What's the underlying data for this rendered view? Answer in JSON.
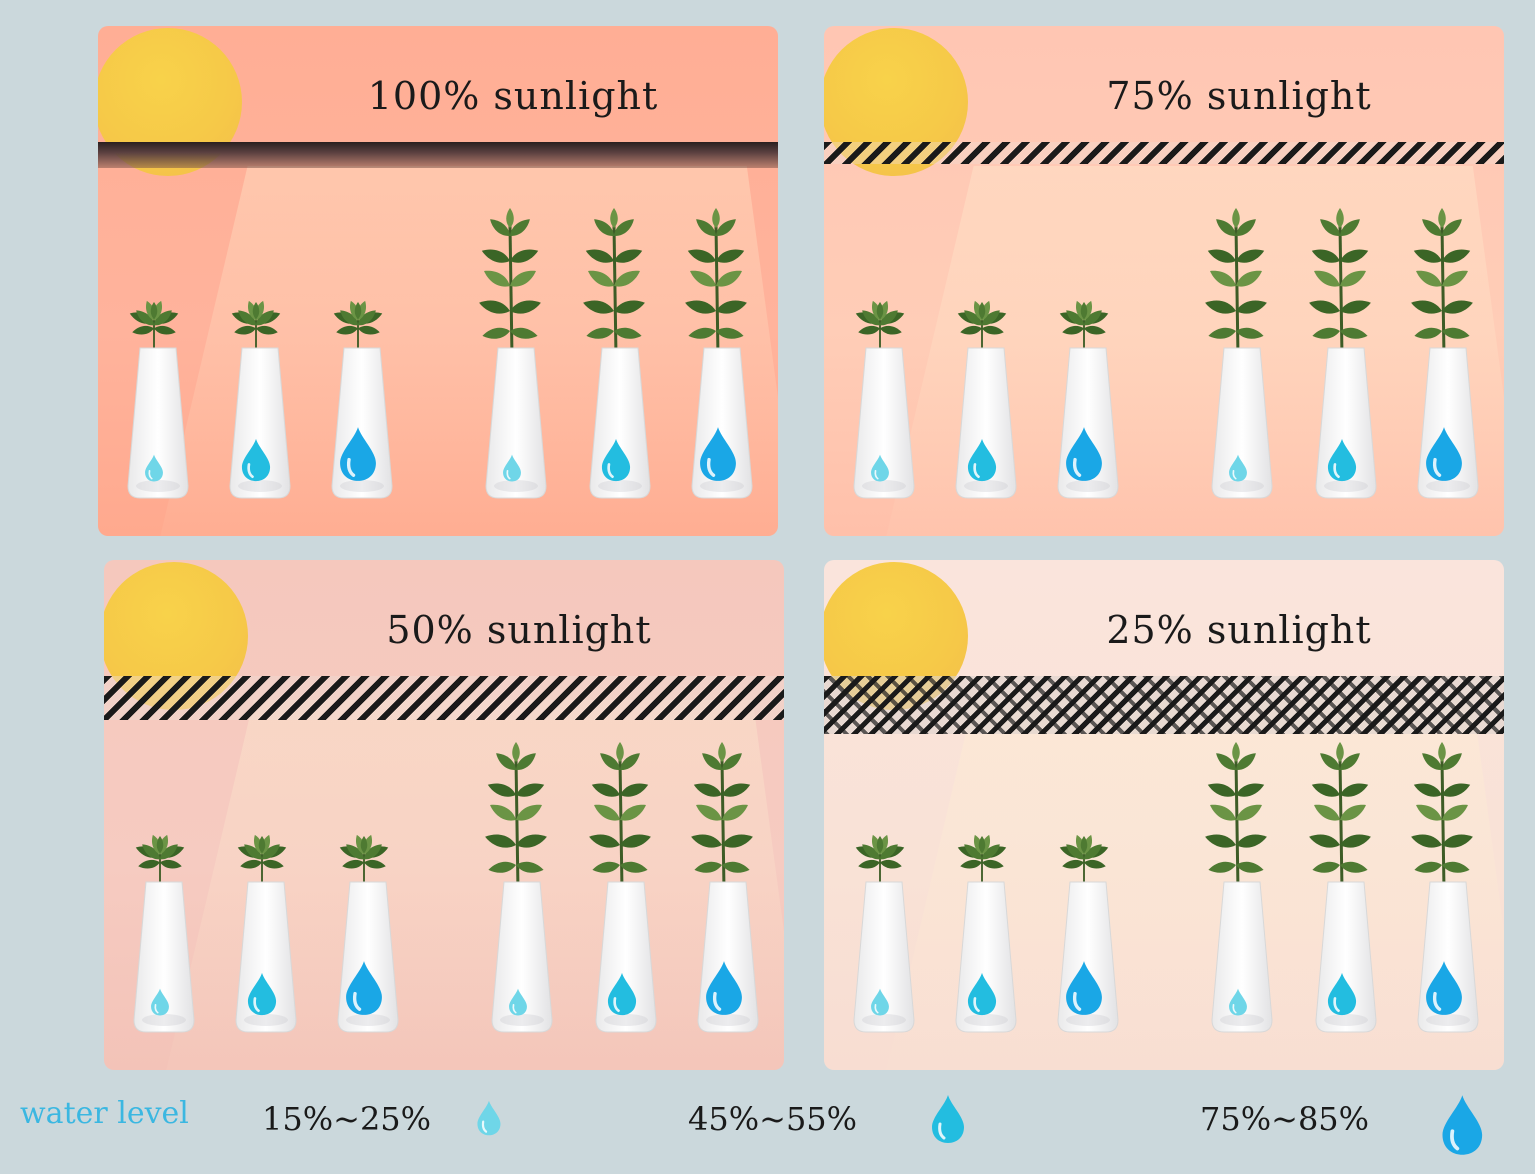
{
  "panels": [
    {
      "id": "100",
      "title": "100% sunlight"
    },
    {
      "id": "75",
      "title": "75% sunlight"
    },
    {
      "id": "50",
      "title": "50% sunlight"
    },
    {
      "id": "25",
      "title": "25% sunlight"
    }
  ],
  "legend": {
    "title": "water level",
    "levels": [
      {
        "label": "15%~25%",
        "icon": "water-drop-small-icon"
      },
      {
        "label": "45%~55%",
        "icon": "water-drop-medium-icon"
      },
      {
        "label": "75%~85%",
        "icon": "water-drop-large-icon"
      }
    ]
  },
  "colors": {
    "drop_small": "#6fd6e8",
    "drop_medium": "#23bde0",
    "drop_large": "#1aa7e6",
    "legend_title": "#3bb7e1",
    "sun": "#f6c948"
  }
}
